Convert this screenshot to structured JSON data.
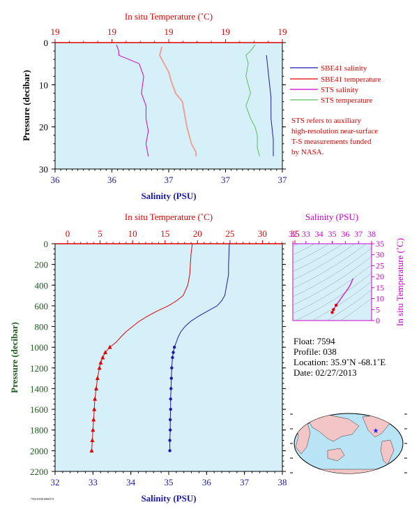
{
  "colors": {
    "plot_bg": "#d6f0fa",
    "sbe_salinity": "#1a1aaa",
    "sbe_temperature": "#e00000",
    "sts_salinity": "#cc00cc",
    "sts_temperature": "#5abf5a",
    "sts_temp_light": "#f0a090",
    "pressure_axis": "#1e5a1e",
    "ts_axis": "#cc00cc"
  },
  "chart_data": [
    {
      "type": "line",
      "panel": "near-surface",
      "top_axis": {
        "label": "In situ Temperature (˚C)",
        "ticks": [
          "19",
          "19",
          "19",
          "19",
          "19"
        ]
      },
      "bottom_axis": {
        "label": "Salinity (PSU)",
        "ticks": [
          "36",
          "36",
          "37",
          "37",
          "37"
        ],
        "range": [
          36.0,
          37.0
        ]
      },
      "y_axis": {
        "label": "Pressure (decibar)",
        "ticks": [
          0,
          10,
          20,
          30
        ],
        "range": [
          0,
          30
        ],
        "inverted": true
      },
      "grid": false,
      "legend": {
        "placement": "right",
        "entries": [
          {
            "name": "SBE41 salinity",
            "color": "#1a1aaa"
          },
          {
            "name": "SBE41 temperature",
            "color": "#e00000"
          },
          {
            "name": "STS salinity",
            "color": "#cc00cc"
          },
          {
            "name": "STS temperature",
            "color": "#5abf5a"
          }
        ]
      },
      "note": [
        "STS refers to auxiliary",
        "high-resolution near-surface",
        "T-S measurements funded",
        "by NASA."
      ],
      "series": [
        {
          "name": "STS salinity",
          "axis": "bottom",
          "pressure": [
            0.5,
            2,
            3,
            5,
            8,
            12,
            15,
            18,
            21,
            24,
            27
          ],
          "values": [
            36.27,
            36.28,
            36.28,
            36.37,
            36.39,
            36.38,
            36.4,
            36.4,
            36.41,
            36.4,
            36.41
          ]
        },
        {
          "name": "STS salinity (light)",
          "axis": "bottom",
          "pressure": [
            1,
            3,
            5,
            7,
            9,
            12,
            14,
            17,
            20,
            24,
            26,
            27
          ],
          "values": [
            36.47,
            36.46,
            36.48,
            36.5,
            36.51,
            36.53,
            36.56,
            36.57,
            36.58,
            36.6,
            36.62,
            36.62
          ]
        },
        {
          "name": "STS temperature",
          "axis": "bottom",
          "pressure": [
            0.5,
            2,
            3,
            5,
            8,
            10,
            12,
            15,
            18,
            20,
            22,
            25,
            27
          ],
          "values": [
            36.88,
            36.86,
            36.84,
            36.85,
            36.84,
            36.85,
            36.86,
            36.84,
            36.86,
            36.88,
            36.89,
            36.89,
            36.9
          ]
        },
        {
          "name": "SBE41 salinity",
          "axis": "bottom",
          "pressure": [
            3,
            8,
            13,
            18,
            23,
            27
          ],
          "values": [
            36.93,
            36.94,
            36.95,
            36.95,
            36.96,
            36.96
          ]
        }
      ]
    },
    {
      "type": "line",
      "panel": "full-profile",
      "top_axis": {
        "label": "In situ Temperature (˚C)",
        "ticks": [
          0,
          5,
          10,
          15,
          20,
          25,
          30,
          35
        ],
        "range": [
          0,
          35
        ]
      },
      "bottom_axis": {
        "label": "Salinity (PSU)",
        "ticks": [
          32,
          33,
          34,
          35,
          36,
          37,
          38
        ],
        "range": [
          32,
          38
        ]
      },
      "y_axis": {
        "label": "Pressure (decibar)",
        "ticks": [
          0,
          200,
          400,
          600,
          800,
          1000,
          1200,
          1400,
          1600,
          1800,
          2000,
          2200
        ],
        "range": [
          0,
          2200
        ],
        "inverted": true
      },
      "grid": false,
      "series": [
        {
          "name": "SBE41 temperature",
          "pressure": [
            0,
            100,
            200,
            300,
            400,
            500,
            550,
            600,
            650,
            700,
            750,
            800,
            850,
            900,
            950,
            1000,
            1050,
            1100,
            1150,
            1200,
            1300,
            1400,
            1500,
            1600,
            1700,
            1800,
            1900,
            2000
          ],
          "values": [
            19.2,
            19.0,
            18.9,
            18.8,
            18.5,
            17.8,
            16.8,
            15.5,
            13.8,
            12.3,
            11.0,
            10.0,
            9.0,
            8.2,
            7.5,
            6.5,
            5.8,
            5.4,
            5.1,
            4.9,
            4.6,
            4.4,
            4.2,
            4.1,
            4.0,
            3.9,
            3.8,
            3.7
          ]
        },
        {
          "name": "SBE41 salinity",
          "pressure": [
            0,
            100,
            200,
            300,
            400,
            500,
            550,
            600,
            650,
            700,
            750,
            800,
            850,
            900,
            950,
            1000,
            1050,
            1100,
            1200,
            1300,
            1400,
            1500,
            1600,
            1700,
            1800,
            1900,
            2000
          ],
          "values": [
            36.6,
            36.59,
            36.58,
            36.58,
            36.53,
            36.48,
            36.4,
            36.28,
            36.03,
            35.79,
            35.58,
            35.43,
            35.32,
            35.25,
            35.2,
            35.15,
            35.12,
            35.1,
            35.08,
            35.07,
            35.06,
            35.05,
            35.05,
            35.04,
            35.04,
            35.03,
            35.03
          ]
        }
      ]
    },
    {
      "type": "scatter",
      "panel": "ts-diagram",
      "top_axis": {
        "label": "Salinity (PSU)",
        "ticks": [
          32,
          33,
          34,
          35,
          36,
          37,
          38
        ],
        "range": [
          32,
          38
        ]
      },
      "right_axis": {
        "label": "In situ Temperature (˚C)",
        "ticks": [
          0,
          5,
          10,
          15,
          20,
          25,
          30,
          35
        ],
        "range": [
          0,
          35
        ]
      },
      "salinity": [
        35.0,
        35.1,
        35.3,
        35.6,
        35.9,
        36.2,
        36.4,
        36.5,
        36.6
      ],
      "temperature": [
        3.7,
        5.0,
        7.0,
        9.5,
        12.0,
        14.5,
        16.5,
        18.0,
        19.2
      ]
    }
  ],
  "float_info": {
    "float": "Float:  7594",
    "profile": "Profile:  038",
    "location": "Location:  35.9˚N  -68.1˚E",
    "date": "Date:  02/27/2013"
  },
  "footer_code": "7594 0/038 0060574"
}
